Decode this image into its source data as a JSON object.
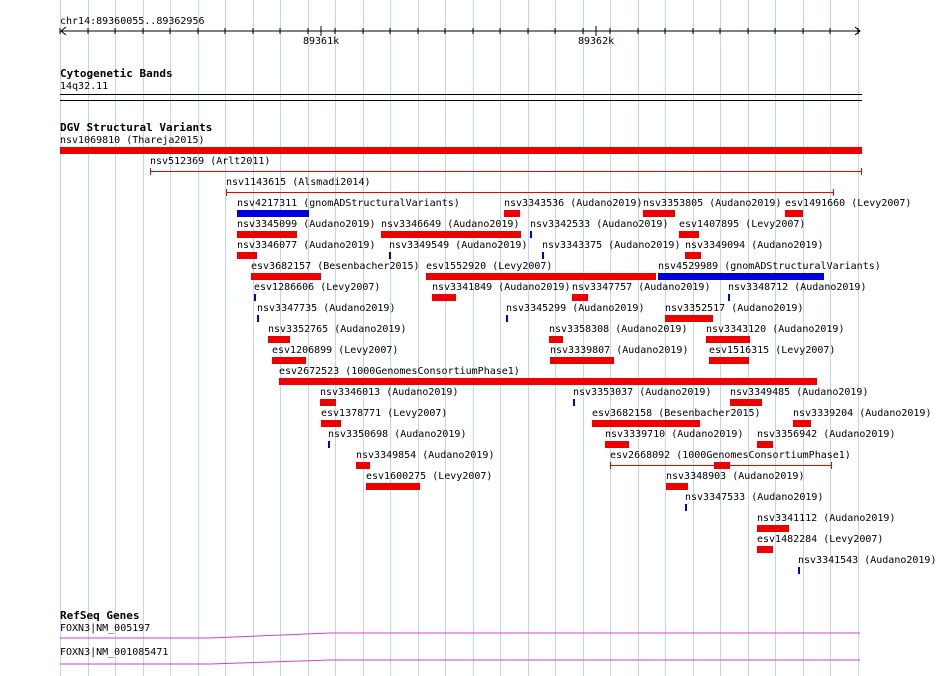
{
  "ruler": {
    "range_label": "chr14:89360055..89362956",
    "major_ticks": [
      "89361k",
      "89362k"
    ]
  },
  "cytoband": {
    "title": "Cytogenetic Bands",
    "band": "14q32.11"
  },
  "dgv": {
    "title": "DGV Structural Variants",
    "colors": {
      "gain": "#ee0000",
      "loss": "#0000dd",
      "complex": "#ee0000"
    },
    "features": [
      {
        "label": "nsv1069810 (Thareja2015)",
        "type": "gain"
      },
      {
        "label": "nsv512369 (Arlt2011)",
        "type": "range"
      },
      {
        "label": "nsv1143615 (Alsmadi2014)",
        "type": "range"
      },
      {
        "label": "nsv4217311 (gnomADStructuralVariants)",
        "type": "loss"
      },
      {
        "label": "nsv3343536 (Audano2019)",
        "type": "gain"
      },
      {
        "label": "nsv3353805 (Audano2019)",
        "type": "gain"
      },
      {
        "label": "esv1491660 (Levy2007)",
        "type": "gain"
      },
      {
        "label": "nsv3345099 (Audano2019)",
        "type": "gain"
      },
      {
        "label": "nsv3346649 (Audano2019)",
        "type": "gain"
      },
      {
        "label": "nsv3342533 (Audano2019)",
        "type": "loss"
      },
      {
        "label": "esv1407895 (Levy2007)",
        "type": "gain"
      },
      {
        "label": "nsv3346077 (Audano2019)",
        "type": "gain"
      },
      {
        "label": "nsv3349549 (Audano2019)",
        "type": "loss"
      },
      {
        "label": "nsv3343375 (Audano2019)",
        "type": "loss"
      },
      {
        "label": "nsv3349094 (Audano2019)",
        "type": "gain"
      },
      {
        "label": "esv3682157 (Besenbacher2015)",
        "type": "gain"
      },
      {
        "label": "esv1552920 (Levy2007)",
        "type": "gain"
      },
      {
        "label": "nsv4529989 (gnomADStructuralVariants)",
        "type": "loss"
      },
      {
        "label": "esv1286606 (Levy2007)",
        "type": "loss"
      },
      {
        "label": "nsv3341849 (Audano2019)",
        "type": "gain"
      },
      {
        "label": "nsv3347757 (Audano2019)",
        "type": "gain"
      },
      {
        "label": "nsv3348712 (Audano2019)",
        "type": "loss"
      },
      {
        "label": "nsv3347735 (Audano2019)",
        "type": "loss"
      },
      {
        "label": "nsv3345299 (Audano2019)",
        "type": "loss"
      },
      {
        "label": "nsv3352517 (Audano2019)",
        "type": "gain"
      },
      {
        "label": "nsv3352765 (Audano2019)",
        "type": "gain"
      },
      {
        "label": "nsv3358308 (Audano2019)",
        "type": "gain"
      },
      {
        "label": "nsv3343120 (Audano2019)",
        "type": "gain"
      },
      {
        "label": "esv1206899 (Levy2007)",
        "type": "gain"
      },
      {
        "label": "nsv3339807 (Audano2019)",
        "type": "gain"
      },
      {
        "label": "esv1516315 (Levy2007)",
        "type": "gain"
      },
      {
        "label": "esv2672523 (1000GenomesConsortiumPhase1)",
        "type": "gain"
      },
      {
        "label": "nsv3346013 (Audano2019)",
        "type": "gain"
      },
      {
        "label": "nsv3353037 (Audano2019)",
        "type": "loss"
      },
      {
        "label": "nsv3349485 (Audano2019)",
        "type": "gain"
      },
      {
        "label": "esv1378771 (Levy2007)",
        "type": "gain"
      },
      {
        "label": "esv3682158 (Besenbacher2015)",
        "type": "gain"
      },
      {
        "label": "nsv3339204 (Audano2019)",
        "type": "gain"
      },
      {
        "label": "nsv3350698 (Audano2019)",
        "type": "loss"
      },
      {
        "label": "nsv3339710 (Audano2019)",
        "type": "gain"
      },
      {
        "label": "nsv3356942 (Audano2019)",
        "type": "gain"
      },
      {
        "label": "nsv3349854 (Audano2019)",
        "type": "gain"
      },
      {
        "label": "esv2668092 (1000GenomesConsortiumPhase1)",
        "type": "complex"
      },
      {
        "label": "esv1600275 (Levy2007)",
        "type": "gain"
      },
      {
        "label": "nsv3348903 (Audano2019)",
        "type": "gain"
      },
      {
        "label": "nsv3347533 (Audano2019)",
        "type": "loss"
      },
      {
        "label": "nsv3341112 (Audano2019)",
        "type": "gain"
      },
      {
        "label": "esv1482284 (Levy2007)",
        "type": "gain"
      },
      {
        "label": "nsv3341543 (Audano2019)",
        "type": "loss"
      }
    ]
  },
  "refseq": {
    "title": "RefSeq Genes",
    "genes": [
      {
        "label": "FOXN3|NM_005197",
        "color": "#cc44cc"
      },
      {
        "label": "FOXN3|NM_001085471",
        "color": "#cc44cc"
      }
    ]
  }
}
